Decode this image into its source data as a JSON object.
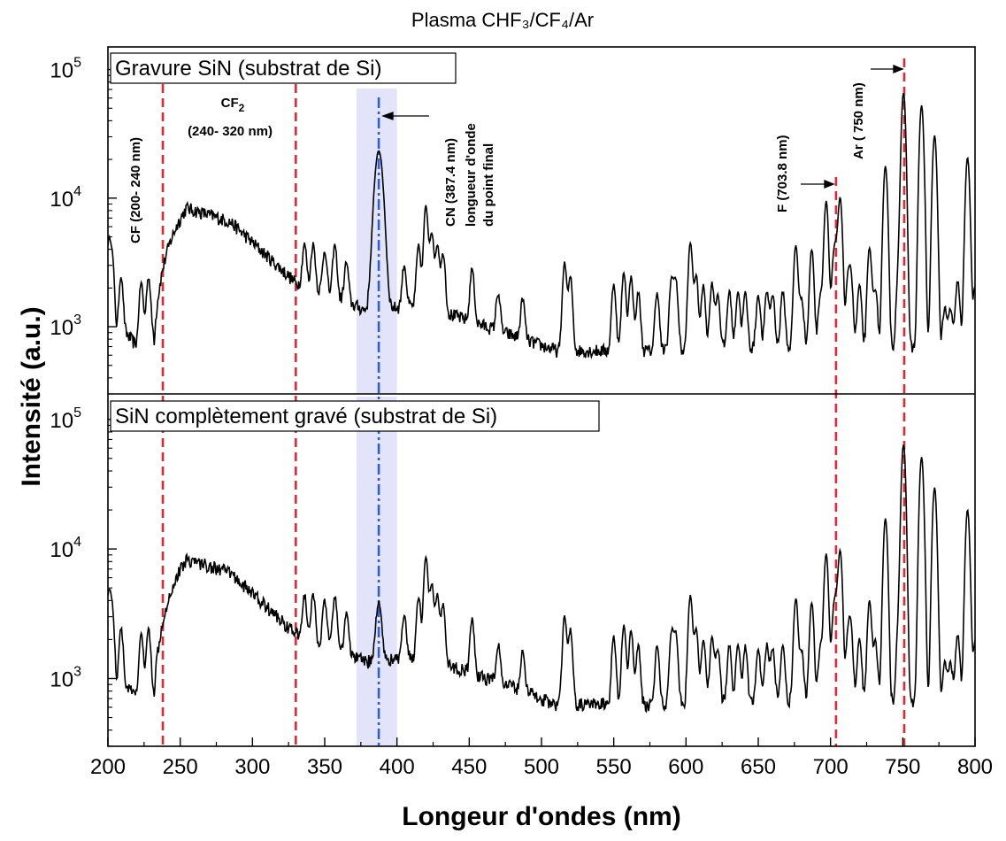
{
  "chart_data": {
    "type": "line",
    "title": "Plasma CHF₃/CF₄/Ar",
    "xlabel": "Longeur d'ondes (nm)",
    "ylabel": "Intensité (a.u.)",
    "xlim": [
      200,
      800
    ],
    "ylim": [
      300,
      150000
    ],
    "y_scale": "log",
    "x_ticks": [
      200,
      250,
      300,
      350,
      400,
      450,
      500,
      550,
      600,
      650,
      700,
      750,
      800
    ],
    "y_ticks": [
      {
        "value": 1000,
        "base": "10",
        "exp": "3"
      },
      {
        "value": 10000,
        "base": "10",
        "exp": "4"
      },
      {
        "value": 100000,
        "base": "10",
        "exp": "5"
      }
    ],
    "vertical_lines": [
      {
        "x": 238,
        "style": "dashed",
        "color": "#e8272a"
      },
      {
        "x": 330,
        "style": "dashed",
        "color": "#e8272a"
      },
      {
        "x": 703.8,
        "style": "dashed",
        "color": "#e8272a"
      },
      {
        "x": 751,
        "style": "dashed",
        "color": "#e8272a"
      },
      {
        "x": 387.4,
        "style": "dashdot",
        "color": "#2d5fd8"
      }
    ],
    "shaded_band": {
      "x0": 372,
      "x1": 400,
      "color": "#dcdcf7"
    },
    "panels": [
      {
        "label": "Gravure SiN (substrat de Si)",
        "cn_peak": 22000,
        "annotations": [
          {
            "text": "CF (200- 240 nm)"
          },
          {
            "text": "CF",
            "sub": "2"
          },
          {
            "text": "(240- 320 nm)"
          },
          {
            "text": "CN (387.4 nm)"
          },
          {
            "text": "longueur d'onde"
          },
          {
            "text": "du point final"
          },
          {
            "text": "F (703.8 nm)"
          },
          {
            "text": "Ar ( 750 nm)"
          }
        ]
      },
      {
        "label": "SiN complètement gravé (substrat de Si)",
        "cn_peak": 2500
      }
    ],
    "series": [
      {
        "peaks": [
          {
            "x": 200.5,
            "y": 3700
          },
          {
            "x": 203,
            "y": 2600
          },
          {
            "x": 209,
            "y": 1650
          },
          {
            "x": 223,
            "y": 1500
          },
          {
            "x": 228,
            "y": 1600
          },
          {
            "x": 336,
            "y": 2300
          },
          {
            "x": 342,
            "y": 2400
          },
          {
            "x": 350,
            "y": 2100
          },
          {
            "x": 357,
            "y": 2600
          },
          {
            "x": 365,
            "y": 1600
          },
          {
            "x": 405,
            "y": 1600
          },
          {
            "x": 415,
            "y": 2800
          },
          {
            "x": 420,
            "y": 7200
          },
          {
            "x": 424,
            "y": 4000
          },
          {
            "x": 428,
            "y": 3000
          },
          {
            "x": 432,
            "y": 2400
          },
          {
            "x": 452,
            "y": 1750
          },
          {
            "x": 470,
            "y": 900
          },
          {
            "x": 487,
            "y": 850
          },
          {
            "x": 516,
            "y": 2500
          },
          {
            "x": 520,
            "y": 1800
          },
          {
            "x": 550,
            "y": 1500
          },
          {
            "x": 557,
            "y": 2000
          },
          {
            "x": 562,
            "y": 1800
          },
          {
            "x": 567,
            "y": 1200
          },
          {
            "x": 580,
            "y": 1200
          },
          {
            "x": 590,
            "y": 1700
          },
          {
            "x": 593,
            "y": 1600
          },
          {
            "x": 603,
            "y": 3800
          },
          {
            "x": 607,
            "y": 1800
          },
          {
            "x": 612,
            "y": 1400
          },
          {
            "x": 618,
            "y": 1500
          },
          {
            "x": 622,
            "y": 1100
          },
          {
            "x": 630,
            "y": 1200
          },
          {
            "x": 636,
            "y": 1200
          },
          {
            "x": 641,
            "y": 1150
          },
          {
            "x": 650,
            "y": 1100
          },
          {
            "x": 656,
            "y": 1200
          },
          {
            "x": 660,
            "y": 1100
          },
          {
            "x": 667,
            "y": 1200
          },
          {
            "x": 676,
            "y": 3600
          },
          {
            "x": 680,
            "y": 1000
          },
          {
            "x": 687,
            "y": 3300
          },
          {
            "x": 693,
            "y": 1100
          },
          {
            "x": 697,
            "y": 8800
          },
          {
            "x": 702,
            "y": 2000
          },
          {
            "x": 703.8,
            "y": 2600
          },
          {
            "x": 706.7,
            "y": 9200
          },
          {
            "x": 712,
            "y": 1400
          },
          {
            "x": 714,
            "y": 1800
          },
          {
            "x": 720,
            "y": 1400
          },
          {
            "x": 727,
            "y": 3400
          },
          {
            "x": 731,
            "y": 1300
          },
          {
            "x": 738,
            "y": 17000
          },
          {
            "x": 747,
            "y": 1800
          },
          {
            "x": 750.5,
            "y": 65000
          },
          {
            "x": 763,
            "y": 52000
          },
          {
            "x": 772,
            "y": 30000
          },
          {
            "x": 779,
            "y": 700
          },
          {
            "x": 783,
            "y": 700
          },
          {
            "x": 788,
            "y": 1600
          },
          {
            "x": 794.8,
            "y": 20000
          },
          {
            "x": 800,
            "y": 1300
          }
        ]
      }
    ]
  }
}
